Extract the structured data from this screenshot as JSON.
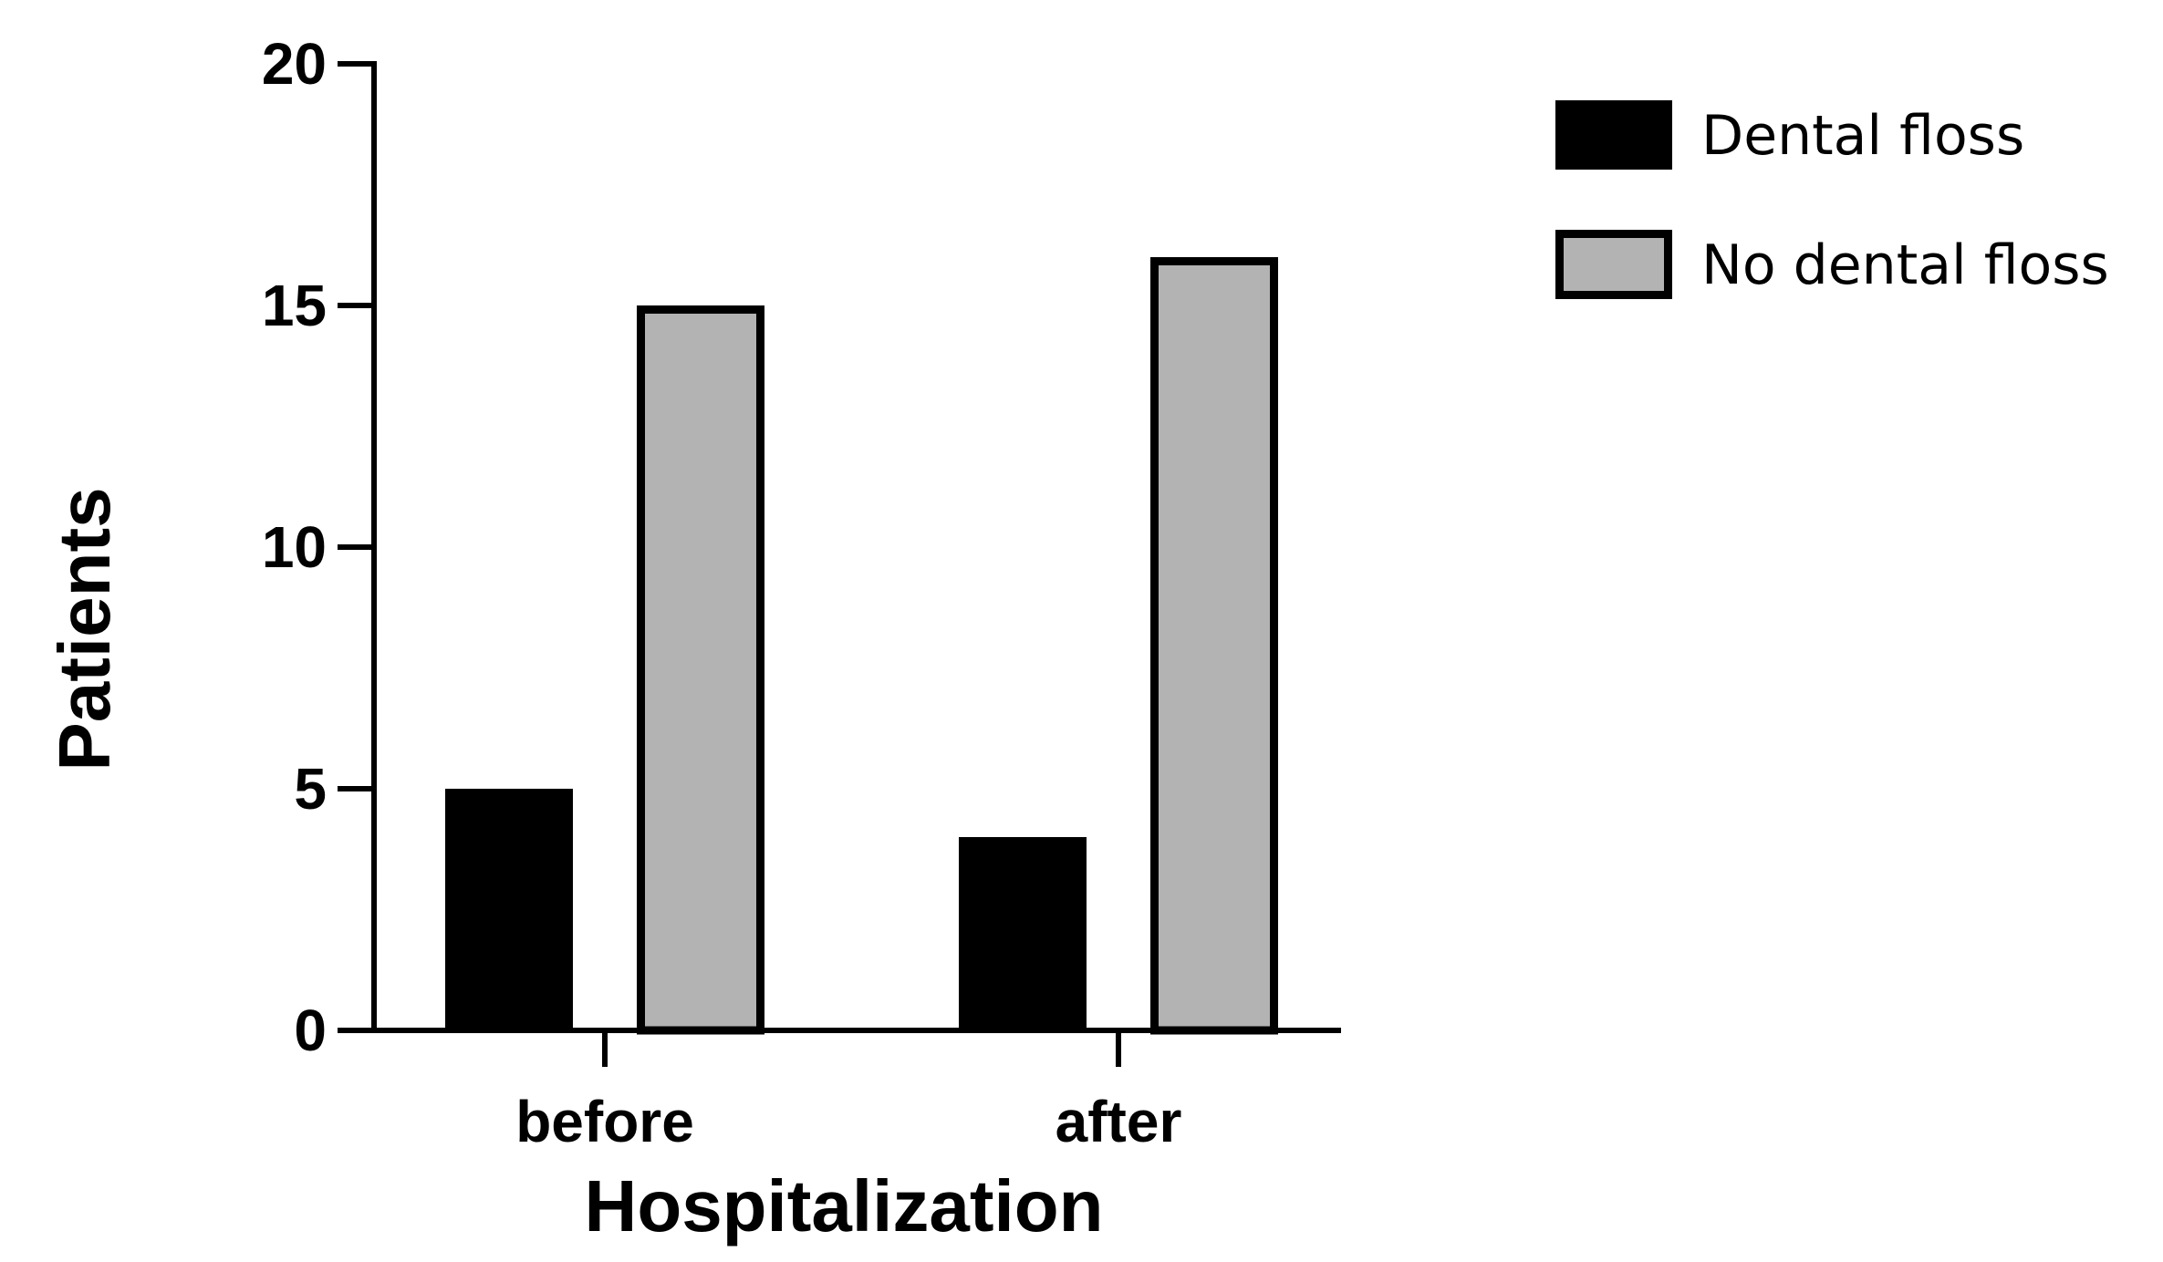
{
  "chart_data": {
    "type": "bar",
    "title": "",
    "xlabel": "Hospitalization",
    "ylabel": "Patients",
    "categories": [
      "before",
      "after"
    ],
    "series": [
      {
        "name": "Dental floss",
        "values": [
          5,
          4
        ],
        "color": "#000000"
      },
      {
        "name": "No dental floss",
        "values": [
          15,
          16
        ],
        "color": "#b3b3b3"
      }
    ],
    "ylim": [
      0,
      20
    ],
    "yticks": [
      0,
      5,
      10,
      15,
      20
    ],
    "ytick_labels": [
      "0",
      "5",
      "10",
      "15",
      "20"
    ],
    "grid": false,
    "legend_position": "top-right"
  }
}
